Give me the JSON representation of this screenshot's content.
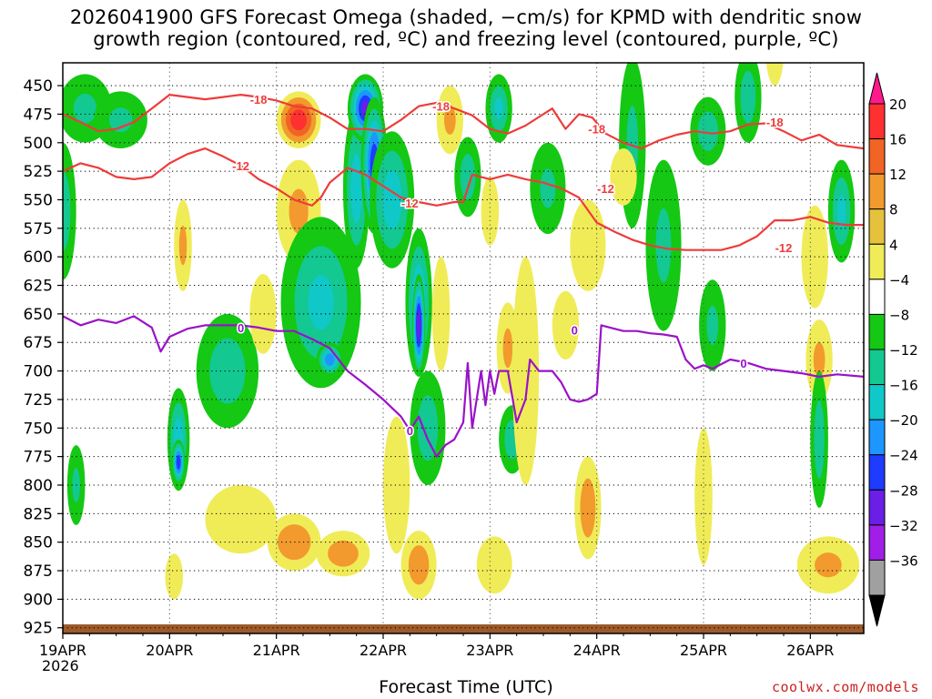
{
  "title": {
    "line1": "2026041900 GFS Forecast Omega (shaded, −cm/s) for KPMD with dendritic snow",
    "line2": "growth region (contoured, red, ºC) and freezing level (contoured, purple, ºC)"
  },
  "xlabel": "Forecast Time (UTC)",
  "credit": "coolwx.com/models",
  "year_label": "2026",
  "chart_data": {
    "type": "heatmap",
    "x_ticks": [
      "19APR",
      "20APR",
      "21APR",
      "22APR",
      "23APR",
      "24APR",
      "25APR",
      "26APR"
    ],
    "x_range_hours": [
      0,
      180
    ],
    "y_ticks": [
      450,
      475,
      500,
      525,
      550,
      575,
      600,
      625,
      650,
      675,
      700,
      725,
      750,
      775,
      800,
      825,
      850,
      875,
      900,
      925
    ],
    "y_range_hpa": [
      430,
      930
    ],
    "y_axis": "pressure (hPa), inverted",
    "colorbar": {
      "labels": [
        "20",
        "16",
        "12",
        "8",
        "4",
        "−4",
        "−8",
        "−12",
        "−16",
        "−20",
        "−24",
        "−28",
        "−32",
        "−36"
      ],
      "bins": [
        {
          "range": ">20",
          "color": "#ff1a8c"
        },
        {
          "range": "16 to 20",
          "color": "#ff3030"
        },
        {
          "range": "12 to 16",
          "color": "#f06424"
        },
        {
          "range": "8 to 12",
          "color": "#f29a2e"
        },
        {
          "range": "4 to 8",
          "color": "#e6c23c"
        },
        {
          "range": "0 to 4",
          "color": "#f0ec58"
        },
        {
          "range": "-4 to 4",
          "color": "#ffffff"
        },
        {
          "range": "-8 to -4",
          "color": "#14c814"
        },
        {
          "range": "-12 to -8",
          "color": "#13c891"
        },
        {
          "range": "-16 to -12",
          "color": "#10c8c8"
        },
        {
          "range": "-20 to -16",
          "color": "#1e96ff"
        },
        {
          "range": "-24 to -20",
          "color": "#1e3cff"
        },
        {
          "range": "-28 to -24",
          "color": "#6a1ee6"
        },
        {
          "range": "-32 to -28",
          "color": "#a01ee6"
        },
        {
          "range": "-36 to -32",
          "color": "#a0a0a0"
        },
        {
          "range": "<-36",
          "color": "#000000"
        }
      ]
    },
    "omega_blobs": [
      {
        "t": 0,
        "p": 560,
        "dt": 3,
        "dp": 120,
        "v": -10
      },
      {
        "t": 5,
        "p": 470,
        "dt": 6,
        "dp": 60,
        "v": -8
      },
      {
        "t": 3,
        "p": 800,
        "dt": 2,
        "dp": 70,
        "v": -8
      },
      {
        "t": 13,
        "p": 480,
        "dt": 6,
        "dp": 50,
        "v": -8
      },
      {
        "t": 26,
        "p": 760,
        "dt": 2.5,
        "dp": 90,
        "v": -14
      },
      {
        "t": 26,
        "p": 780,
        "dt": 1.5,
        "dp": 40,
        "v": -22
      },
      {
        "t": 27,
        "p": 590,
        "dt": 2,
        "dp": 80,
        "v": 8
      },
      {
        "t": 25,
        "p": 880,
        "dt": 2,
        "dp": 40,
        "v": 6
      },
      {
        "t": 37,
        "p": 700,
        "dt": 7,
        "dp": 100,
        "v": -10
      },
      {
        "t": 40,
        "p": 830,
        "dt": 8,
        "dp": 60,
        "v": 5
      },
      {
        "t": 45,
        "p": 650,
        "dt": 3,
        "dp": 70,
        "v": 6
      },
      {
        "t": 53,
        "p": 480,
        "dt": 5,
        "dp": 50,
        "v": 18
      },
      {
        "t": 53,
        "p": 560,
        "dt": 5,
        "dp": 90,
        "v": 8
      },
      {
        "t": 52,
        "p": 850,
        "dt": 6,
        "dp": 50,
        "v": 11
      },
      {
        "t": 58,
        "p": 640,
        "dt": 9,
        "dp": 150,
        "v": -12
      },
      {
        "t": 60,
        "p": 690,
        "dt": 3,
        "dp": 30,
        "v": -18
      },
      {
        "t": 63,
        "p": 860,
        "dt": 6,
        "dp": 40,
        "v": 10
      },
      {
        "t": 66,
        "p": 540,
        "dt": 3,
        "dp": 140,
        "v": -14
      },
      {
        "t": 68,
        "p": 470,
        "dt": 4,
        "dp": 60,
        "v": -24
      },
      {
        "t": 70,
        "p": 520,
        "dt": 3,
        "dp": 120,
        "v": -22
      },
      {
        "t": 74,
        "p": 550,
        "dt": 5,
        "dp": 120,
        "v": -14
      },
      {
        "t": 75,
        "p": 800,
        "dt": 3,
        "dp": 120,
        "v": 5
      },
      {
        "t": 80,
        "p": 640,
        "dt": 3,
        "dp": 130,
        "v": -16
      },
      {
        "t": 80,
        "p": 660,
        "dt": 1.5,
        "dp": 90,
        "v": -26
      },
      {
        "t": 82,
        "p": 750,
        "dt": 4,
        "dp": 100,
        "v": -10
      },
      {
        "t": 80,
        "p": 860,
        "dt": 2.5,
        "dp": 40,
        "v": 22
      },
      {
        "t": 80,
        "p": 870,
        "dt": 4,
        "dp": 60,
        "v": 10
      },
      {
        "t": 85,
        "p": 650,
        "dt": 2,
        "dp": 100,
        "v": 6
      },
      {
        "t": 87,
        "p": 480,
        "dt": 3,
        "dp": 60,
        "v": 8
      },
      {
        "t": 91,
        "p": 530,
        "dt": 3,
        "dp": 70,
        "v": -10
      },
      {
        "t": 96,
        "p": 560,
        "dt": 2,
        "dp": 60,
        "v": 6
      },
      {
        "t": 98,
        "p": 470,
        "dt": 3,
        "dp": 60,
        "v": -12
      },
      {
        "t": 97,
        "p": 870,
        "dt": 4,
        "dp": 50,
        "v": 6
      },
      {
        "t": 100,
        "p": 680,
        "dt": 2.5,
        "dp": 80,
        "v": 8
      },
      {
        "t": 101,
        "p": 760,
        "dt": 3,
        "dp": 60,
        "v": -10
      },
      {
        "t": 104,
        "p": 700,
        "dt": 3,
        "dp": 200,
        "v": 6
      },
      {
        "t": 109,
        "p": 540,
        "dt": 4,
        "dp": 80,
        "v": -8
      },
      {
        "t": 113,
        "p": 660,
        "dt": 3,
        "dp": 60,
        "v": 6
      },
      {
        "t": 118,
        "p": 590,
        "dt": 4,
        "dp": 80,
        "v": 6
      },
      {
        "t": 118,
        "p": 820,
        "dt": 3,
        "dp": 90,
        "v": 10
      },
      {
        "t": 128,
        "p": 500,
        "dt": 3,
        "dp": 150,
        "v": -8
      },
      {
        "t": 126,
        "p": 530,
        "dt": 3,
        "dp": 50,
        "v": 5
      },
      {
        "t": 135,
        "p": 590,
        "dt": 4,
        "dp": 150,
        "v": -8
      },
      {
        "t": 145,
        "p": 490,
        "dt": 4,
        "dp": 60,
        "v": -10
      },
      {
        "t": 146,
        "p": 660,
        "dt": 3,
        "dp": 80,
        "v": -8
      },
      {
        "t": 144,
        "p": 810,
        "dt": 2,
        "dp": 120,
        "v": 5
      },
      {
        "t": 154,
        "p": 460,
        "dt": 3,
        "dp": 80,
        "v": -10
      },
      {
        "t": 160,
        "p": 420,
        "dt": 2,
        "dp": 60,
        "v": 5
      },
      {
        "t": 169,
        "p": 600,
        "dt": 3,
        "dp": 90,
        "v": 5
      },
      {
        "t": 170,
        "p": 690,
        "dt": 3,
        "dp": 70,
        "v": 8
      },
      {
        "t": 170,
        "p": 760,
        "dt": 2,
        "dp": 120,
        "v": -10
      },
      {
        "t": 175,
        "p": 560,
        "dt": 3,
        "dp": 90,
        "v": -12
      },
      {
        "t": 172,
        "p": 870,
        "dt": 7,
        "dp": 50,
        "v": 8
      }
    ],
    "dgz_minus18": {
      "label": "-18",
      "points": [
        [
          0,
          475
        ],
        [
          4,
          482
        ],
        [
          8,
          490
        ],
        [
          12,
          488
        ],
        [
          16,
          482
        ],
        [
          20,
          470
        ],
        [
          24,
          458
        ],
        [
          28,
          460
        ],
        [
          32,
          462
        ],
        [
          36,
          460
        ],
        [
          40,
          458
        ],
        [
          44,
          460
        ],
        [
          48,
          463
        ],
        [
          52,
          468
        ],
        [
          56,
          470
        ],
        [
          60,
          478
        ],
        [
          64,
          488
        ],
        [
          68,
          488
        ],
        [
          72,
          490
        ],
        [
          76,
          480
        ],
        [
          80,
          468
        ],
        [
          84,
          465
        ],
        [
          88,
          470
        ],
        [
          92,
          476
        ],
        [
          96,
          488
        ],
        [
          100,
          492
        ],
        [
          104,
          485
        ],
        [
          108,
          475
        ],
        [
          110,
          470
        ],
        [
          113,
          488
        ],
        [
          116,
          475
        ],
        [
          119,
          478
        ],
        [
          122,
          492
        ],
        [
          126,
          500
        ],
        [
          130,
          505
        ],
        [
          134,
          498
        ],
        [
          138,
          493
        ],
        [
          142,
          490
        ],
        [
          146,
          492
        ],
        [
          150,
          490
        ],
        [
          154,
          484
        ],
        [
          158,
          483
        ],
        [
          162,
          490
        ],
        [
          166,
          498
        ],
        [
          170,
          493
        ],
        [
          174,
          502
        ],
        [
          180,
          505
        ]
      ]
    },
    "dgz_minus12": {
      "label": "-12",
      "points": [
        [
          0,
          525
        ],
        [
          4,
          518
        ],
        [
          8,
          522
        ],
        [
          12,
          530
        ],
        [
          16,
          532
        ],
        [
          20,
          530
        ],
        [
          24,
          518
        ],
        [
          28,
          510
        ],
        [
          32,
          505
        ],
        [
          36,
          512
        ],
        [
          40,
          520
        ],
        [
          44,
          532
        ],
        [
          48,
          540
        ],
        [
          52,
          550
        ],
        [
          56,
          555
        ],
        [
          58,
          548
        ],
        [
          60,
          535
        ],
        [
          64,
          522
        ],
        [
          68,
          528
        ],
        [
          72,
          538
        ],
        [
          76,
          548
        ],
        [
          80,
          552
        ],
        [
          84,
          555
        ],
        [
          88,
          552
        ],
        [
          90,
          552
        ],
        [
          92,
          528
        ],
        [
          96,
          532
        ],
        [
          100,
          528
        ],
        [
          104,
          532
        ],
        [
          108,
          535
        ],
        [
          112,
          540
        ],
        [
          116,
          548
        ],
        [
          120,
          570
        ],
        [
          124,
          578
        ],
        [
          128,
          585
        ],
        [
          132,
          590
        ],
        [
          136,
          593
        ],
        [
          140,
          594
        ],
        [
          144,
          594
        ],
        [
          148,
          594
        ],
        [
          152,
          590
        ],
        [
          156,
          582
        ],
        [
          160,
          568
        ],
        [
          164,
          568
        ],
        [
          168,
          565
        ],
        [
          172,
          570
        ],
        [
          176,
          572
        ],
        [
          180,
          572
        ]
      ]
    },
    "freezing_level_0C": {
      "label": "0",
      "points": [
        [
          0,
          652
        ],
        [
          4,
          660
        ],
        [
          8,
          655
        ],
        [
          12,
          658
        ],
        [
          16,
          652
        ],
        [
          20,
          662
        ],
        [
          22,
          683
        ],
        [
          24,
          670
        ],
        [
          28,
          663
        ],
        [
          32,
          660
        ],
        [
          36,
          660
        ],
        [
          40,
          660
        ],
        [
          44,
          662
        ],
        [
          48,
          665
        ],
        [
          52,
          665
        ],
        [
          56,
          672
        ],
        [
          60,
          680
        ],
        [
          64,
          700
        ],
        [
          68,
          712
        ],
        [
          72,
          725
        ],
        [
          76,
          740
        ],
        [
          78,
          752
        ],
        [
          80,
          740
        ],
        [
          82,
          760
        ],
        [
          84,
          775
        ],
        [
          86,
          765
        ],
        [
          88,
          760
        ],
        [
          90,
          745
        ],
        [
          91,
          693
        ],
        [
          92,
          750
        ],
        [
          94,
          700
        ],
        [
          95,
          730
        ],
        [
          96,
          700
        ],
        [
          97,
          720
        ],
        [
          98,
          700
        ],
        [
          100,
          700
        ],
        [
          102,
          745
        ],
        [
          104,
          725
        ],
        [
          105,
          690
        ],
        [
          107,
          700
        ],
        [
          110,
          700
        ],
        [
          112,
          710
        ],
        [
          114,
          725
        ],
        [
          116,
          727
        ],
        [
          118,
          725
        ],
        [
          120,
          720
        ],
        [
          121,
          660
        ],
        [
          123,
          662
        ],
        [
          126,
          665
        ],
        [
          129,
          665
        ],
        [
          132,
          667
        ],
        [
          135,
          668
        ],
        [
          138,
          670
        ],
        [
          140,
          690
        ],
        [
          142,
          698
        ],
        [
          144,
          695
        ],
        [
          146,
          698
        ],
        [
          150,
          690
        ],
        [
          154,
          693
        ],
        [
          158,
          698
        ],
        [
          162,
          700
        ],
        [
          166,
          702
        ],
        [
          170,
          705
        ],
        [
          174,
          703
        ],
        [
          180,
          705
        ]
      ]
    }
  }
}
